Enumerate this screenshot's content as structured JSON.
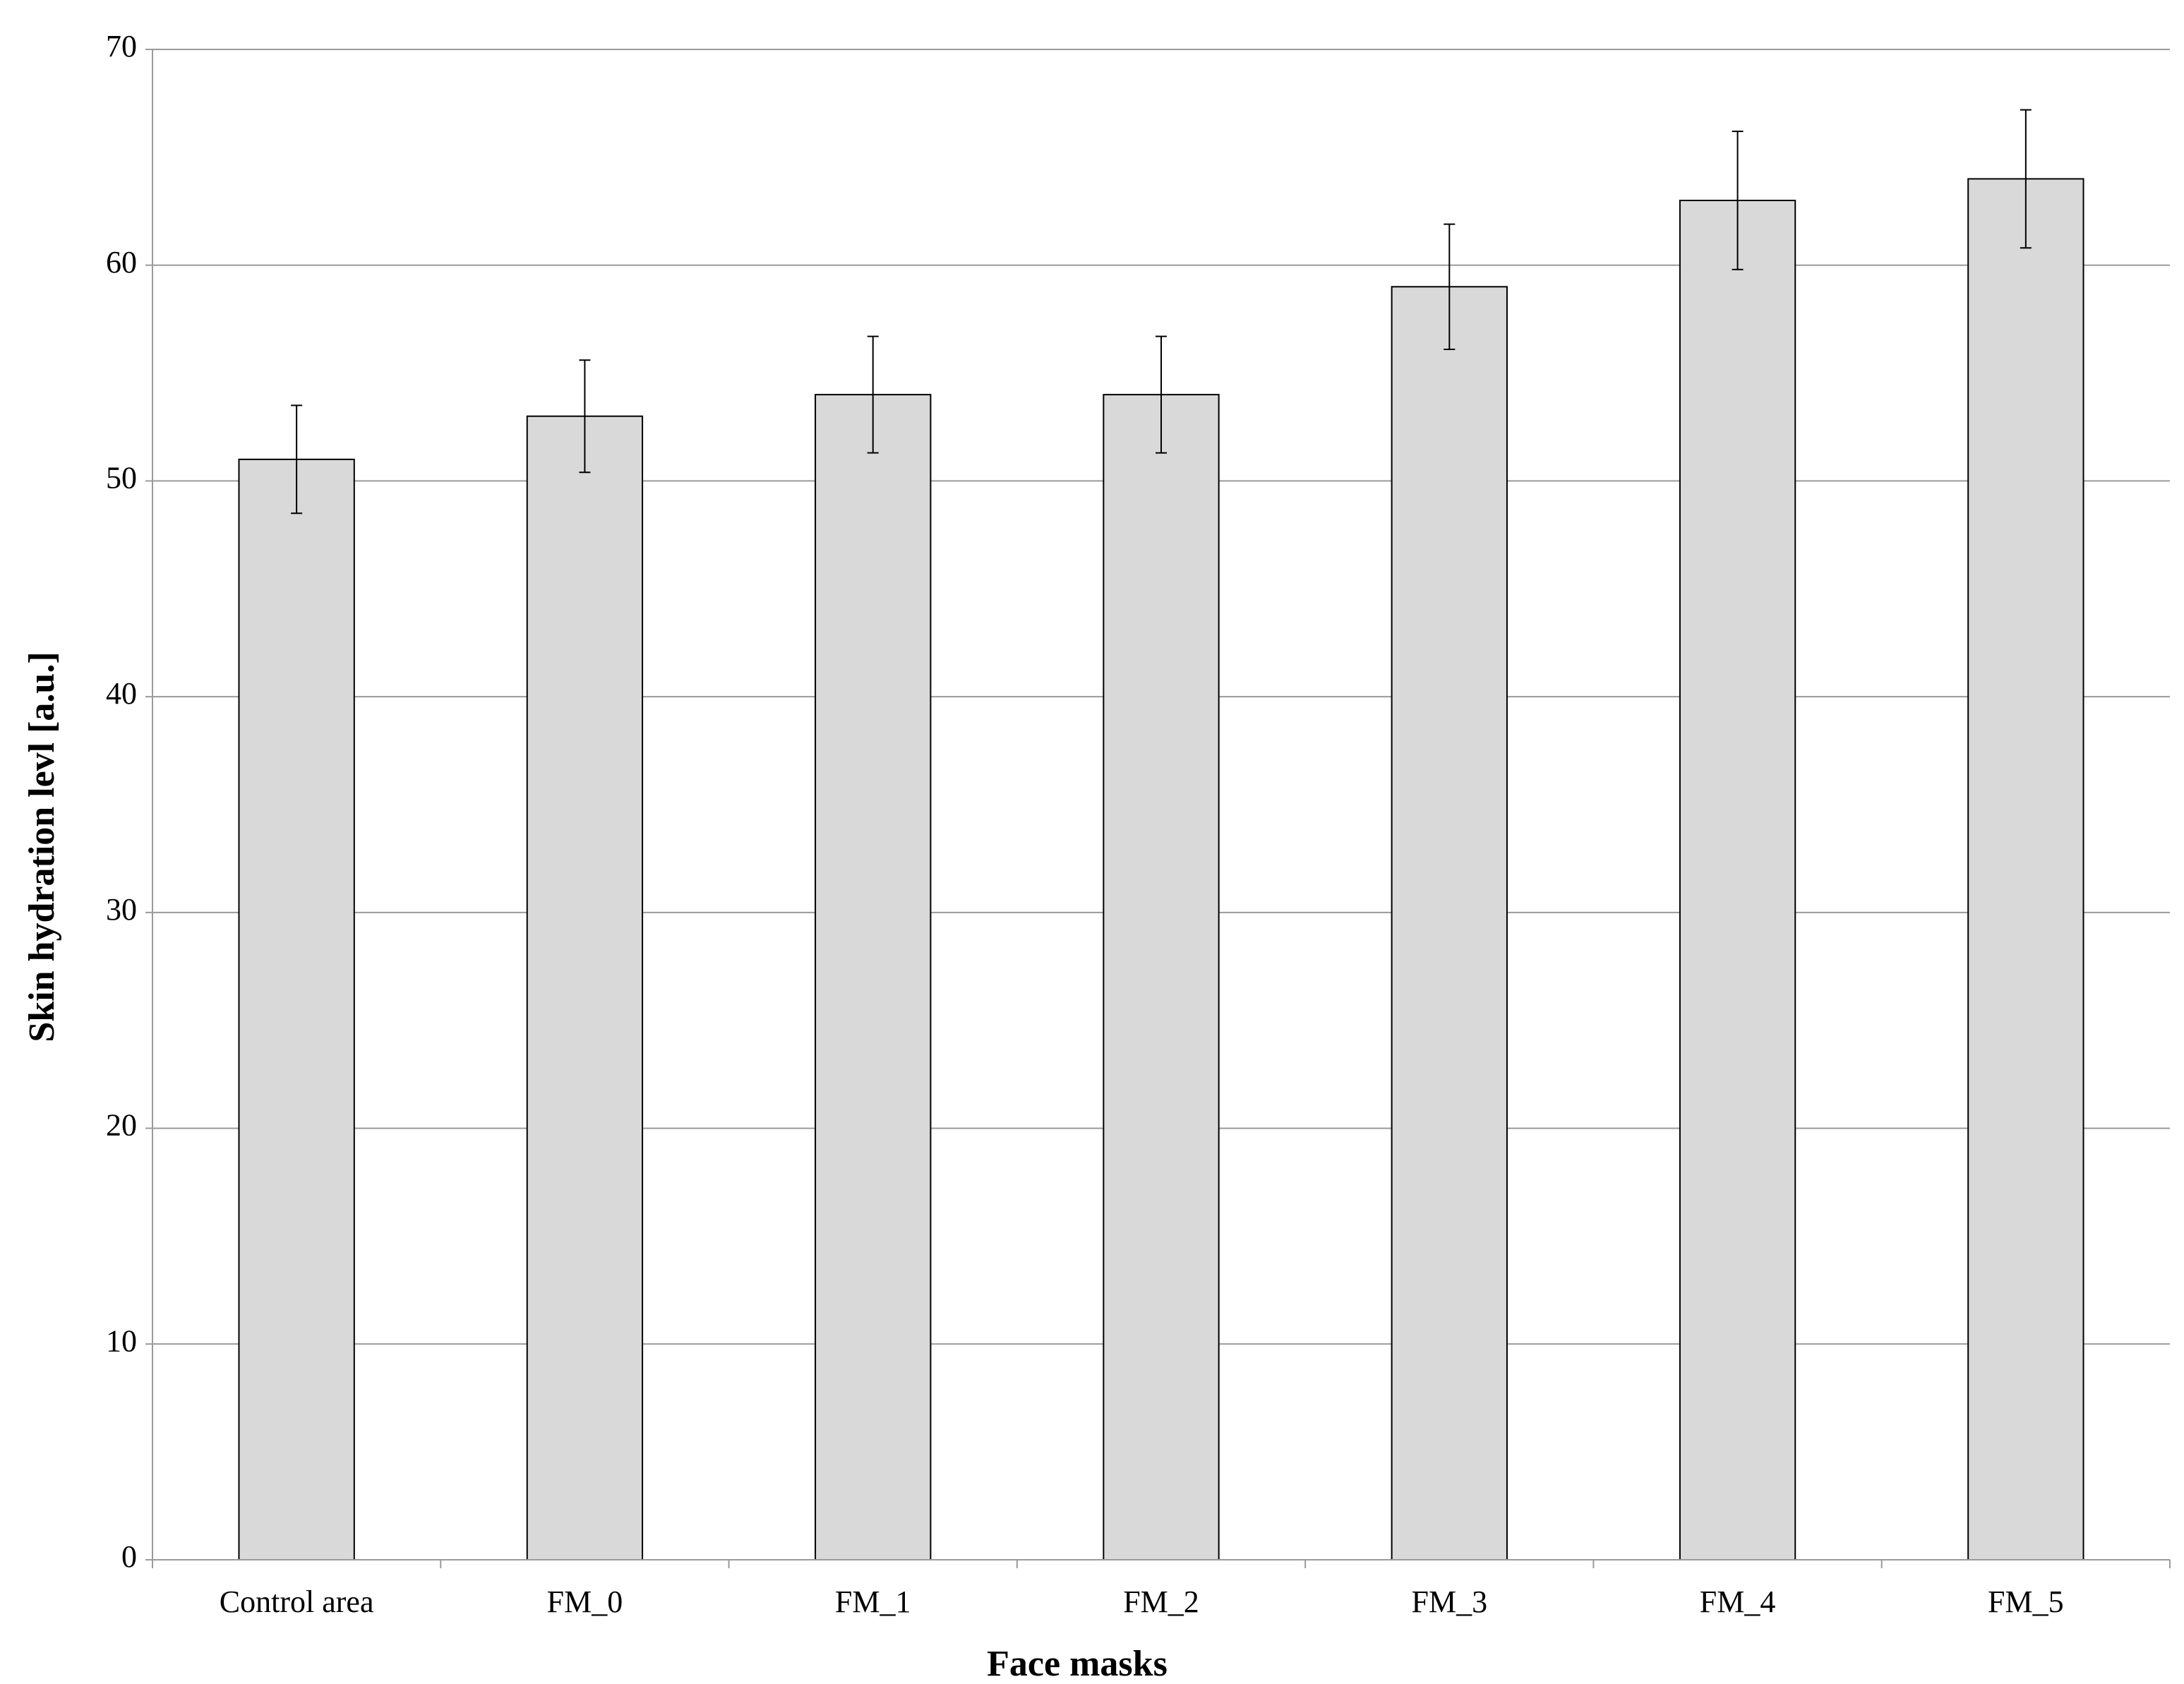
{
  "chart_data": {
    "type": "bar",
    "categories": [
      "Control area",
      "FM_0",
      "FM_1",
      "FM_2",
      "FM_3",
      "FM_4",
      "FM_5"
    ],
    "values": [
      51,
      53,
      54,
      54,
      59,
      63,
      64
    ],
    "errors": [
      2.5,
      2.6,
      2.7,
      2.7,
      2.9,
      3.2,
      3.2
    ],
    "color": "#d9d9d9",
    "x_label": "Face masks",
    "y_label": "Skin hydration levl [a.u.]",
    "ylim": [
      0,
      70
    ],
    "yticks": [
      0,
      10,
      20,
      30,
      40,
      50,
      60,
      70
    ],
    "grid": true
  }
}
